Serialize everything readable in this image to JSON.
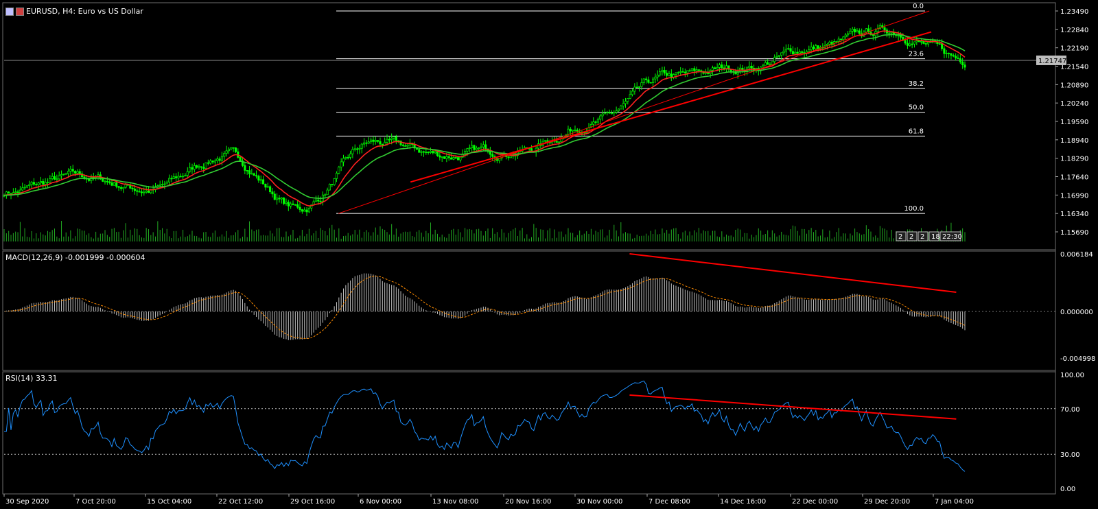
{
  "main_panel": {
    "symbol_title": "EURUSD, H4:  Euro vs US Dollar",
    "current_price_badge": "1.21747",
    "price_ticks": [
      "1.23490",
      "1.22840",
      "1.22190",
      "1.21540",
      "1.20890",
      "1.20240",
      "1.19590",
      "1.18940",
      "1.18290",
      "1.17640",
      "1.16990",
      "1.16340",
      "1.15690"
    ],
    "fib_levels": [
      "0.0",
      "23.6",
      "38.2",
      "50.0",
      "61.8",
      "100.0"
    ],
    "time_badges": [
      "2",
      "2",
      "2",
      "18",
      "22:30"
    ]
  },
  "macd_panel": {
    "title": "MACD(12,26,9) -0.001999 -0.000604",
    "ticks": [
      "0.006184",
      "0.000000",
      "-0.004998"
    ]
  },
  "rsi_panel": {
    "title": "RSI(14) 33.31",
    "ticks": [
      "100.00",
      "70.00",
      "30.00",
      "0.00"
    ]
  },
  "time_axis": {
    "labels": [
      "30 Sep 2020",
      "7 Oct 20:00",
      "15 Oct 04:00",
      "22 Oct 12:00",
      "29 Oct 16:00",
      "6 Nov 00:00",
      "13 Nov 08:00",
      "20 Nov 16:00",
      "30 Nov 00:00",
      "7 Dec 08:00",
      "14 Dec 16:00",
      "22 Dec 00:00",
      "29 Dec 20:00",
      "7 Jan 04:00"
    ]
  },
  "colors": {
    "background": "#000000",
    "bull_candle": "#00ff00",
    "bear_candle": "#00ff00",
    "ema_fast": "#ff2020",
    "ema_slow": "#32cd32",
    "trendline": "#ff0000",
    "macd_hist": "#c0c0c0",
    "macd_signal": "#ff8c00",
    "rsi_line": "#1e90ff",
    "grid": "#ffffff"
  },
  "chart_data": {
    "type": "candlestick",
    "symbol": "EURUSD",
    "timeframe": "H4",
    "price_range": [
      1.1569,
      1.2349
    ],
    "price_path_anchors": [
      {
        "t": "30 Sep 2020",
        "price": 1.171
      },
      {
        "t": "7 Oct 20:00",
        "price": 1.176
      },
      {
        "t": "15 Oct 04:00",
        "price": 1.172
      },
      {
        "t": "22 Oct 12:00",
        "price": 1.184
      },
      {
        "t": "29 Oct 16:00",
        "price": 1.165
      },
      {
        "t": "6 Nov 00:00",
        "price": 1.188
      },
      {
        "t": "13 Nov 08:00",
        "price": 1.184
      },
      {
        "t": "20 Nov 16:00",
        "price": 1.186
      },
      {
        "t": "30 Nov 00:00",
        "price": 1.196
      },
      {
        "t": "7 Dec 08:00",
        "price": 1.211
      },
      {
        "t": "14 Dec 16:00",
        "price": 1.215
      },
      {
        "t": "22 Dec 00:00",
        "price": 1.222
      },
      {
        "t": "29 Dec 20:00",
        "price": 1.228
      },
      {
        "t": "7 Jan 04:00",
        "price": 1.2175
      }
    ],
    "fibonacci": {
      "high": 1.2349,
      "low": 1.1634,
      "levels": [
        0.0,
        23.6,
        38.2,
        50.0,
        61.8,
        100.0
      ]
    },
    "macd": {
      "range": [
        -0.004998,
        0.006184
      ],
      "current": -0.001999,
      "signal": -0.000604
    },
    "rsi": {
      "range": [
        0,
        100
      ],
      "levels": [
        70,
        30
      ],
      "current": 33.31
    }
  }
}
